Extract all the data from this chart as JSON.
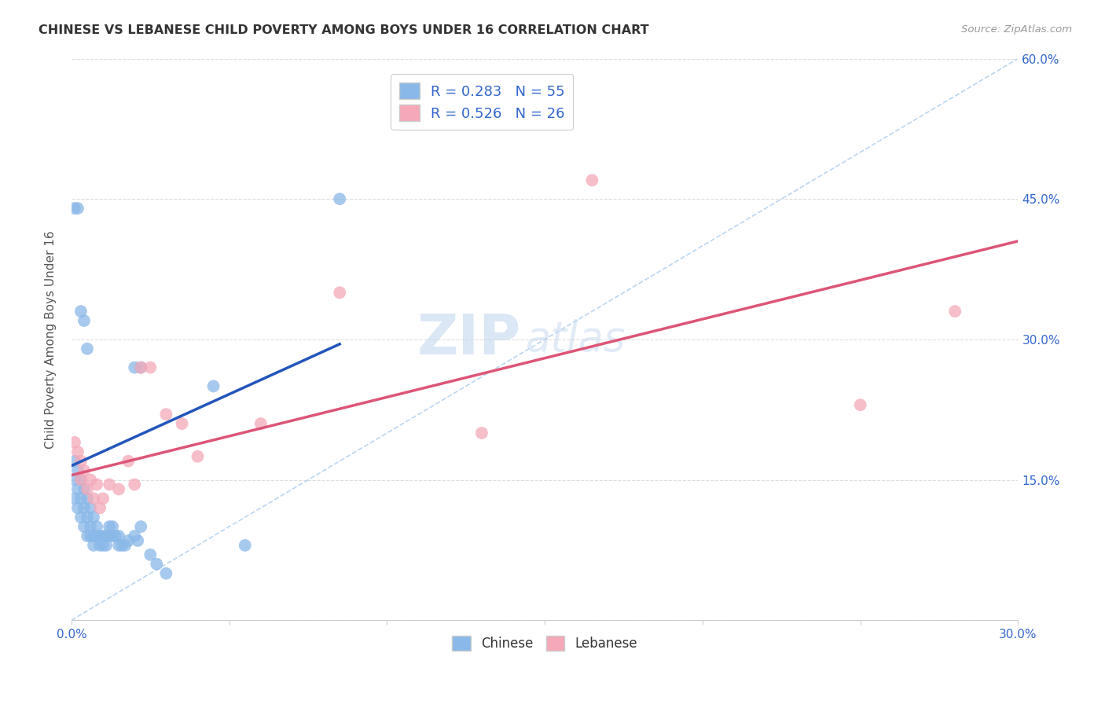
{
  "title": "CHINESE VS LEBANESE CHILD POVERTY AMONG BOYS UNDER 16 CORRELATION CHART",
  "source": "Source: ZipAtlas.com",
  "ylabel": "Child Poverty Among Boys Under 16",
  "xlim": [
    0.0,
    0.3
  ],
  "ylim": [
    0.0,
    0.6
  ],
  "xticks": [
    0.0,
    0.05,
    0.1,
    0.15,
    0.2,
    0.25,
    0.3
  ],
  "xtick_labels": [
    "0.0%",
    "",
    "",
    "",
    "",
    "",
    "30.0%"
  ],
  "yticks": [
    0.0,
    0.15,
    0.3,
    0.45,
    0.6
  ],
  "ytick_labels_right": [
    "",
    "15.0%",
    "30.0%",
    "45.0%",
    "60.0%"
  ],
  "chinese_R": 0.283,
  "chinese_N": 55,
  "lebanese_R": 0.526,
  "lebanese_N": 26,
  "chinese_color": "#8ab8e8",
  "lebanese_color": "#f4a8b8",
  "chinese_line_color": "#2255bb",
  "lebanese_line_color": "#dd5577",
  "diagonal_color": "#aaccee",
  "watermark_zip": "ZIP",
  "watermark_atlas": "atlas",
  "background_color": "#ffffff",
  "grid_color": "#dddddd",
  "chinese_x": [
    0.001,
    0.001,
    0.001,
    0.002,
    0.002,
    0.002,
    0.003,
    0.003,
    0.003,
    0.004,
    0.004,
    0.004,
    0.005,
    0.005,
    0.005,
    0.006,
    0.006,
    0.006,
    0.007,
    0.007,
    0.007,
    0.008,
    0.008,
    0.009,
    0.009,
    0.01,
    0.01,
    0.011,
    0.011,
    0.012,
    0.012,
    0.013,
    0.013,
    0.014,
    0.015,
    0.015,
    0.016,
    0.017,
    0.018,
    0.02,
    0.021,
    0.022,
    0.025,
    0.027,
    0.03,
    0.001,
    0.002,
    0.003,
    0.004,
    0.005,
    0.02,
    0.022,
    0.045,
    0.055,
    0.085
  ],
  "chinese_y": [
    0.17,
    0.15,
    0.13,
    0.16,
    0.14,
    0.12,
    0.15,
    0.13,
    0.11,
    0.14,
    0.12,
    0.1,
    0.13,
    0.11,
    0.09,
    0.12,
    0.1,
    0.09,
    0.11,
    0.09,
    0.08,
    0.1,
    0.09,
    0.09,
    0.08,
    0.09,
    0.08,
    0.09,
    0.08,
    0.1,
    0.09,
    0.1,
    0.09,
    0.09,
    0.09,
    0.08,
    0.08,
    0.08,
    0.085,
    0.09,
    0.085,
    0.1,
    0.07,
    0.06,
    0.05,
    0.44,
    0.44,
    0.33,
    0.32,
    0.29,
    0.27,
    0.27,
    0.25,
    0.08,
    0.45
  ],
  "lebanese_x": [
    0.001,
    0.002,
    0.003,
    0.003,
    0.004,
    0.005,
    0.006,
    0.007,
    0.008,
    0.009,
    0.01,
    0.012,
    0.015,
    0.018,
    0.02,
    0.022,
    0.025,
    0.03,
    0.035,
    0.04,
    0.06,
    0.085,
    0.13,
    0.165,
    0.25,
    0.28
  ],
  "lebanese_y": [
    0.19,
    0.18,
    0.17,
    0.15,
    0.16,
    0.14,
    0.15,
    0.13,
    0.145,
    0.12,
    0.13,
    0.145,
    0.14,
    0.17,
    0.145,
    0.27,
    0.27,
    0.22,
    0.21,
    0.175,
    0.21,
    0.35,
    0.2,
    0.47,
    0.23,
    0.33
  ],
  "chinese_line_x0": 0.0,
  "chinese_line_y0": 0.165,
  "chinese_line_x1": 0.085,
  "chinese_line_y1": 0.295,
  "lebanese_line_x0": 0.0,
  "lebanese_line_y0": 0.155,
  "lebanese_line_x1": 0.3,
  "lebanese_line_y1": 0.405
}
